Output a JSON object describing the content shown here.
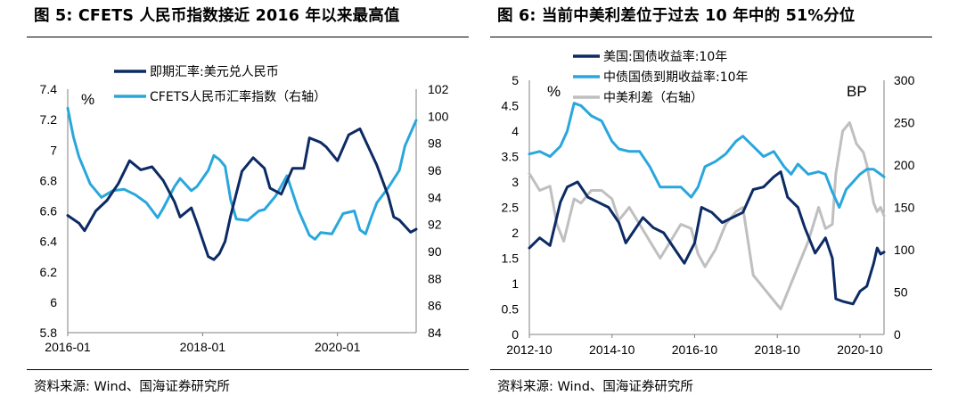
{
  "figures": [
    {
      "title": "图 5:  CFETS 人民币指数接近 2016 年以来最高值",
      "source": "资料来源:  Wind、国海证券研究所"
    },
    {
      "title": "图 6:  当前中美利差位于过去 10 年中的 51%分位",
      "source": "资料来源:  Wind、国海证券研究所"
    }
  ],
  "chart_data": [
    {
      "type": "line",
      "left_unit": "%",
      "x_ticks": [
        "2016-01",
        "2018-01",
        "2020-01"
      ],
      "x_range": [
        "2016-01",
        "2021-03"
      ],
      "y_left": {
        "min": 5.8,
        "max": 7.4,
        "ticks": [
          "7.4",
          "7.2",
          "7",
          "6.8",
          "6.6",
          "6.4",
          "6.2",
          "6",
          "5.8"
        ]
      },
      "y_right": {
        "min": 84,
        "max": 102,
        "ticks": [
          "102",
          "100",
          "98",
          "96",
          "94",
          "92",
          "90",
          "88",
          "86",
          "84"
        ]
      },
      "legend_position": "top-left",
      "series": [
        {
          "name": "即期汇率:美元兑人民币",
          "axis": "left",
          "color": "#0c2a64",
          "points": [
            [
              "2016-01",
              6.57
            ],
            [
              "2016-03",
              6.52
            ],
            [
              "2016-04",
              6.47
            ],
            [
              "2016-06",
              6.6
            ],
            [
              "2016-08",
              6.67
            ],
            [
              "2016-10",
              6.78
            ],
            [
              "2016-12",
              6.93
            ],
            [
              "2017-02",
              6.87
            ],
            [
              "2017-04",
              6.89
            ],
            [
              "2017-06",
              6.8
            ],
            [
              "2017-08",
              6.66
            ],
            [
              "2017-09",
              6.56
            ],
            [
              "2017-11",
              6.62
            ],
            [
              "2017-12",
              6.52
            ],
            [
              "2018-02",
              6.3
            ],
            [
              "2018-03",
              6.28
            ],
            [
              "2018-04",
              6.32
            ],
            [
              "2018-05",
              6.4
            ],
            [
              "2018-06",
              6.57
            ],
            [
              "2018-08",
              6.86
            ],
            [
              "2018-10",
              6.95
            ],
            [
              "2018-12",
              6.88
            ],
            [
              "2019-01",
              6.75
            ],
            [
              "2019-03",
              6.71
            ],
            [
              "2019-05",
              6.88
            ],
            [
              "2019-07",
              6.88
            ],
            [
              "2019-08",
              7.08
            ],
            [
              "2019-10",
              7.05
            ],
            [
              "2019-11",
              7.02
            ],
            [
              "2020-01",
              6.93
            ],
            [
              "2020-03",
              7.1
            ],
            [
              "2020-05",
              7.14
            ],
            [
              "2020-06",
              7.06
            ],
            [
              "2020-08",
              6.9
            ],
            [
              "2020-10",
              6.7
            ],
            [
              "2020-11",
              6.56
            ],
            [
              "2020-12",
              6.54
            ],
            [
              "2021-02",
              6.46
            ],
            [
              "2021-03",
              6.48
            ]
          ]
        },
        {
          "name": "CFETS人民币汇率指数（右轴）",
          "axis": "right",
          "color": "#29a7dd",
          "points": [
            [
              "2016-01",
              100.6
            ],
            [
              "2016-02",
              98.5
            ],
            [
              "2016-03",
              97.0
            ],
            [
              "2016-05",
              95.0
            ],
            [
              "2016-07",
              94.0
            ],
            [
              "2016-09",
              94.5
            ],
            [
              "2016-11",
              94.6
            ],
            [
              "2017-01",
              94.2
            ],
            [
              "2017-03",
              93.6
            ],
            [
              "2017-05",
              92.5
            ],
            [
              "2017-06",
              93.2
            ],
            [
              "2017-08",
              94.8
            ],
            [
              "2017-09",
              95.4
            ],
            [
              "2017-11",
              94.5
            ],
            [
              "2017-12",
              94.8
            ],
            [
              "2018-02",
              96.0
            ],
            [
              "2018-03",
              97.1
            ],
            [
              "2018-04",
              96.8
            ],
            [
              "2018-05",
              96.3
            ],
            [
              "2018-06",
              93.8
            ],
            [
              "2018-07",
              92.4
            ],
            [
              "2018-09",
              92.3
            ],
            [
              "2018-11",
              93.0
            ],
            [
              "2018-12",
              93.1
            ],
            [
              "2019-02",
              94.1
            ],
            [
              "2019-04",
              95.6
            ],
            [
              "2019-06",
              93.1
            ],
            [
              "2019-08",
              91.2
            ],
            [
              "2019-09",
              90.9
            ],
            [
              "2019-10",
              91.4
            ],
            [
              "2019-12",
              91.3
            ],
            [
              "2020-02",
              92.8
            ],
            [
              "2020-04",
              93.0
            ],
            [
              "2020-05",
              91.6
            ],
            [
              "2020-06",
              91.3
            ],
            [
              "2020-07",
              92.5
            ],
            [
              "2020-08",
              93.6
            ],
            [
              "2020-10",
              94.7
            ],
            [
              "2020-12",
              96.0
            ],
            [
              "2021-01",
              97.8
            ],
            [
              "2021-03",
              99.7
            ]
          ]
        }
      ]
    },
    {
      "type": "line",
      "left_unit": "%",
      "right_unit": "BP",
      "x_ticks": [
        "2012-10",
        "2014-10",
        "2016-10",
        "2018-10",
        "2020-10"
      ],
      "x_range": [
        "2012-10",
        "2021-05"
      ],
      "y_left": {
        "min": 0,
        "max": 5,
        "ticks": [
          "5",
          "4.5",
          "4",
          "3.5",
          "3",
          "2.5",
          "2",
          "1.5",
          "1",
          "0.5",
          "0"
        ]
      },
      "y_right": {
        "min": 0,
        "max": 300,
        "ticks": [
          "300",
          "250",
          "200",
          "150",
          "100",
          "50",
          "0"
        ]
      },
      "legend_position": "top-left",
      "series": [
        {
          "name": "美国:国债收益率:10年",
          "axis": "left",
          "color": "#0c2a64",
          "points": [
            [
              "2012-10",
              1.7
            ],
            [
              "2013-01",
              1.9
            ],
            [
              "2013-04",
              1.75
            ],
            [
              "2013-07",
              2.6
            ],
            [
              "2013-09",
              2.9
            ],
            [
              "2013-12",
              3.0
            ],
            [
              "2014-03",
              2.7
            ],
            [
              "2014-06",
              2.6
            ],
            [
              "2014-09",
              2.5
            ],
            [
              "2014-12",
              2.2
            ],
            [
              "2015-02",
              1.8
            ],
            [
              "2015-04",
              2.0
            ],
            [
              "2015-07",
              2.3
            ],
            [
              "2015-10",
              2.1
            ],
            [
              "2016-01",
              2.0
            ],
            [
              "2016-04",
              1.7
            ],
            [
              "2016-07",
              1.4
            ],
            [
              "2016-10",
              1.8
            ],
            [
              "2016-12",
              2.5
            ],
            [
              "2017-03",
              2.4
            ],
            [
              "2017-06",
              2.2
            ],
            [
              "2017-09",
              2.3
            ],
            [
              "2017-12",
              2.4
            ],
            [
              "2018-03",
              2.85
            ],
            [
              "2018-06",
              2.9
            ],
            [
              "2018-09",
              3.1
            ],
            [
              "2018-11",
              3.2
            ],
            [
              "2019-01",
              2.7
            ],
            [
              "2019-04",
              2.5
            ],
            [
              "2019-06",
              2.1
            ],
            [
              "2019-09",
              1.6
            ],
            [
              "2019-12",
              1.9
            ],
            [
              "2020-02",
              1.5
            ],
            [
              "2020-03",
              0.7
            ],
            [
              "2020-05",
              0.65
            ],
            [
              "2020-08",
              0.6
            ],
            [
              "2020-10",
              0.85
            ],
            [
              "2020-12",
              0.95
            ],
            [
              "2021-02",
              1.4
            ],
            [
              "2021-03",
              1.7
            ],
            [
              "2021-04",
              1.58
            ],
            [
              "2021-05",
              1.62
            ]
          ]
        },
        {
          "name": "中债国债到期收益率:10年",
          "axis": "left",
          "color": "#29a7dd",
          "points": [
            [
              "2012-10",
              3.55
            ],
            [
              "2013-01",
              3.6
            ],
            [
              "2013-04",
              3.5
            ],
            [
              "2013-07",
              3.7
            ],
            [
              "2013-09",
              4.0
            ],
            [
              "2013-11",
              4.55
            ],
            [
              "2014-01",
              4.5
            ],
            [
              "2014-04",
              4.3
            ],
            [
              "2014-07",
              4.2
            ],
            [
              "2014-10",
              3.8
            ],
            [
              "2014-12",
              3.65
            ],
            [
              "2015-03",
              3.6
            ],
            [
              "2015-06",
              3.6
            ],
            [
              "2015-09",
              3.3
            ],
            [
              "2015-12",
              2.9
            ],
            [
              "2016-03",
              2.9
            ],
            [
              "2016-06",
              2.9
            ],
            [
              "2016-09",
              2.7
            ],
            [
              "2016-11",
              2.9
            ],
            [
              "2017-01",
              3.3
            ],
            [
              "2017-04",
              3.4
            ],
            [
              "2017-07",
              3.55
            ],
            [
              "2017-10",
              3.8
            ],
            [
              "2017-12",
              3.9
            ],
            [
              "2018-03",
              3.7
            ],
            [
              "2018-06",
              3.5
            ],
            [
              "2018-09",
              3.6
            ],
            [
              "2018-12",
              3.3
            ],
            [
              "2019-02",
              3.15
            ],
            [
              "2019-04",
              3.35
            ],
            [
              "2019-07",
              3.15
            ],
            [
              "2019-10",
              3.2
            ],
            [
              "2019-12",
              3.15
            ],
            [
              "2020-02",
              2.8
            ],
            [
              "2020-04",
              2.5
            ],
            [
              "2020-06",
              2.85
            ],
            [
              "2020-08",
              3.0
            ],
            [
              "2020-10",
              3.15
            ],
            [
              "2020-12",
              3.25
            ],
            [
              "2021-02",
              3.25
            ],
            [
              "2021-04",
              3.15
            ],
            [
              "2021-05",
              3.1
            ]
          ]
        },
        {
          "name": "中美利差（右轴）",
          "axis": "right",
          "color": "#bfbfbf",
          "points": [
            [
              "2012-10",
              190
            ],
            [
              "2013-01",
              170
            ],
            [
              "2013-04",
              175
            ],
            [
              "2013-06",
              130
            ],
            [
              "2013-08",
              110
            ],
            [
              "2013-11",
              160
            ],
            [
              "2014-01",
              155
            ],
            [
              "2014-04",
              170
            ],
            [
              "2014-07",
              170
            ],
            [
              "2014-10",
              160
            ],
            [
              "2014-12",
              135
            ],
            [
              "2015-03",
              150
            ],
            [
              "2015-06",
              130
            ],
            [
              "2015-09",
              110
            ],
            [
              "2015-12",
              90
            ],
            [
              "2016-03",
              110
            ],
            [
              "2016-06",
              130
            ],
            [
              "2016-09",
              125
            ],
            [
              "2016-11",
              95
            ],
            [
              "2017-01",
              80
            ],
            [
              "2017-04",
              100
            ],
            [
              "2017-07",
              130
            ],
            [
              "2017-10",
              145
            ],
            [
              "2017-12",
              150
            ],
            [
              "2018-03",
              70
            ],
            [
              "2018-06",
              55
            ],
            [
              "2018-09",
              40
            ],
            [
              "2018-11",
              30
            ],
            [
              "2019-01",
              50
            ],
            [
              "2019-04",
              80
            ],
            [
              "2019-07",
              110
            ],
            [
              "2019-10",
              150
            ],
            [
              "2019-12",
              125
            ],
            [
              "2020-02",
              130
            ],
            [
              "2020-03",
              190
            ],
            [
              "2020-05",
              240
            ],
            [
              "2020-07",
              250
            ],
            [
              "2020-09",
              225
            ],
            [
              "2020-11",
              215
            ],
            [
              "2020-12",
              200
            ],
            [
              "2021-02",
              155
            ],
            [
              "2021-03",
              145
            ],
            [
              "2021-04",
              150
            ],
            [
              "2021-05",
              140
            ]
          ]
        }
      ]
    }
  ]
}
